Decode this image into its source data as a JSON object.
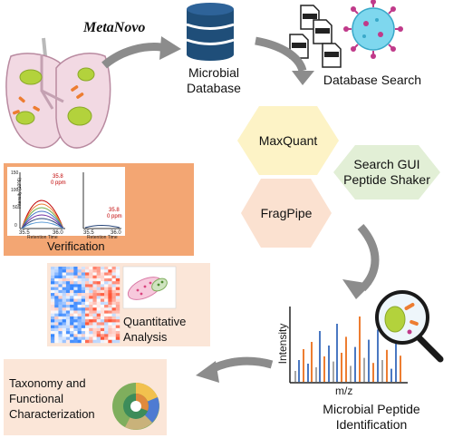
{
  "brand": {
    "name": "MetaNovo"
  },
  "nodes": {
    "microbial_database": {
      "line1": "Microbial",
      "line2": "Database"
    },
    "database_search": {
      "label": "Database Search"
    },
    "raw_files": {
      "tag": "RAW"
    },
    "identification": {
      "line1": "Microbial Peptide",
      "line2": "Identification"
    },
    "spectrum_xlabel": "m/z",
    "spectrum_ylabel": "Intensity"
  },
  "tools": {
    "maxquant": "MaxQuant",
    "searchgui_line1": "Search GUI",
    "searchgui_line2": "Peptide Shaker",
    "fragpipe": "FragPipe"
  },
  "panels": {
    "verification": {
      "title": "Verification",
      "ylabel": "Intensity (10^6)",
      "xlabel_left": "Retention Time",
      "xlabel_right": "Retention Time",
      "left_ppm": "35.8",
      "left_ppm2": "0 ppm",
      "right_ppm": "35.8",
      "right_ppm2": "0 ppm",
      "x_ticks_left": [
        "35.5",
        "36.0"
      ],
      "x_ticks_right": [
        "35.5",
        "36.0"
      ],
      "y_ticks": [
        "150",
        "100",
        "50",
        "0"
      ]
    },
    "quantitative": {
      "line1": "Quantitative",
      "line2": "Analysis"
    },
    "taxonomy": {
      "line1": "Taxonomy and",
      "line2": "Functional",
      "line3": "Characterization"
    }
  },
  "colors": {
    "orange_panel": "#f3a673",
    "light_panel": "#fbe6d8",
    "hex_yellow": "#fdf3c6",
    "hex_green": "#e2efd6",
    "hex_orange": "#fbe1d0",
    "arrow_gray": "#8c8c8c",
    "db_blue": "#1f4e79",
    "spectrum_blue": "#4a78c2",
    "spectrum_orange": "#ed7d31",
    "spectrum_gray": "#a6a6a6"
  },
  "icons": [
    "lung-icon",
    "database-icon",
    "raw-file-icon",
    "virus-icon",
    "magnifier-icon",
    "sunburst-icon",
    "heatmap-icon",
    "pca-plot-icon",
    "chromatogram-icon"
  ]
}
